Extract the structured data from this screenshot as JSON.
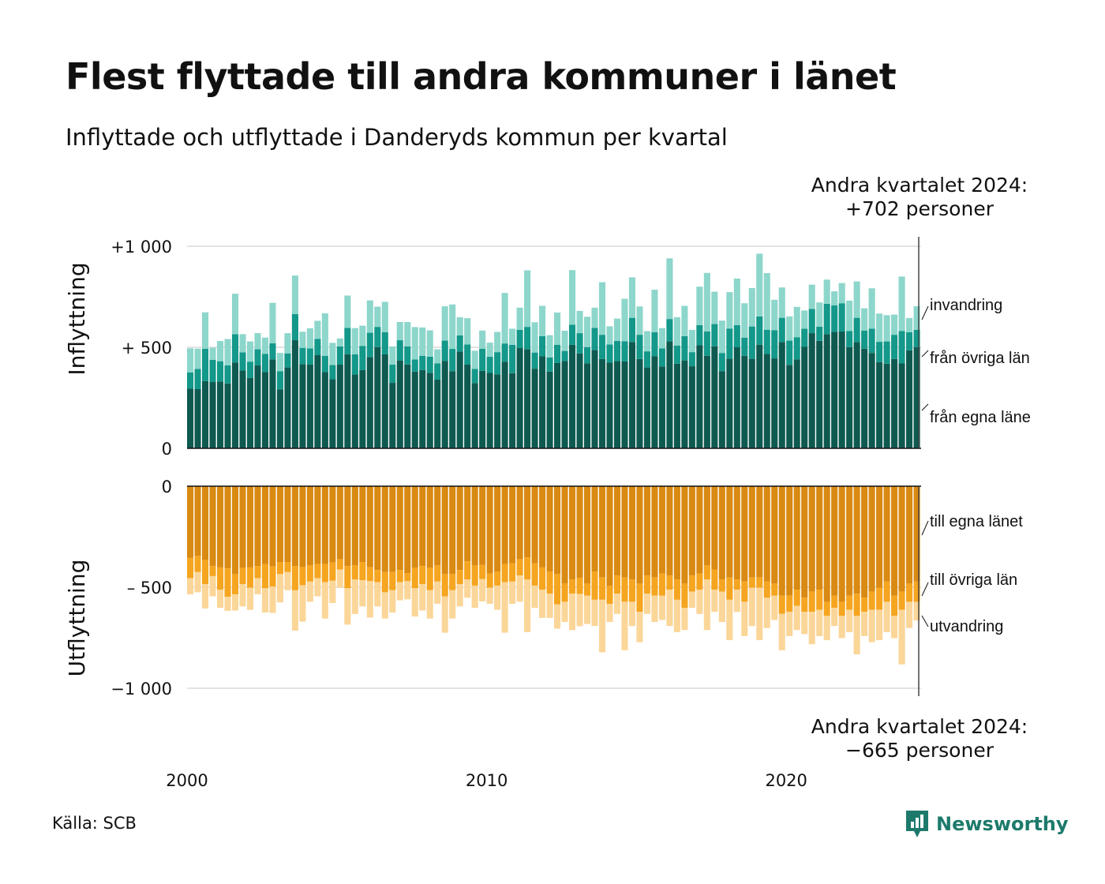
{
  "title": "Flest flyttade till andra kommuner i länet",
  "subtitle": "Inflyttade och utflyttade i Danderyds kommun per kvartal",
  "note_top": [
    "Andra kvartalet 2024:",
    "+702 personer"
  ],
  "note_bottom": [
    "Andra kvartalet 2024:",
    "−665 personer"
  ],
  "source": "Källa: SCB",
  "brand": "Newsworthy",
  "colors": {
    "in_own": "#0e5a50",
    "in_other": "#13988a",
    "in_immig": "#8dd6cb",
    "out_own": "#d98a12",
    "out_other": "#f5a51f",
    "out_emig": "#fbd699",
    "grid": "#e3e3e3",
    "brand": "#1d7a6b"
  },
  "chart_data": [
    {
      "type": "bar",
      "stacked": true,
      "title": "",
      "ylabel": "Inflyttning",
      "ylim": [
        0,
        1050
      ],
      "yticks": [
        {
          "value": 0,
          "label": "0"
        },
        {
          "value": 500,
          "label": "+  500"
        },
        {
          "value": 1000,
          "label": "+1 000"
        }
      ],
      "xticks": [
        {
          "value": 2000,
          "label": "2000"
        },
        {
          "value": 2010,
          "label": "2010"
        },
        {
          "value": 2020,
          "label": "2020"
        }
      ],
      "x_start": "2000 Q1",
      "x_end": "2024 Q2",
      "series": [
        {
          "name": "från egna länet",
          "label": "från egna läne",
          "values": [
            295,
            293,
            333,
            328,
            331,
            321,
            425,
            385,
            349,
            410,
            378,
            440,
            292,
            400,
            535,
            417,
            414,
            461,
            378,
            342,
            414,
            466,
            365,
            387,
            452,
            501,
            465,
            324,
            435,
            415,
            380,
            388,
            374,
            340,
            433,
            382,
            479,
            414,
            323,
            383,
            373,
            366,
            429,
            372,
            496,
            491,
            394,
            455,
            380,
            422,
            432,
            512,
            470,
            421,
            486,
            442,
            424,
            432,
            430,
            526,
            442,
            400,
            455,
            405,
            530,
            419,
            435,
            406,
            510,
            458,
            505,
            382,
            443,
            500,
            458,
            443,
            513,
            467,
            445,
            526,
            413,
            440,
            502,
            570,
            532,
            565,
            577,
            578,
            501,
            526,
            493,
            472,
            427,
            419,
            442,
            420,
            485,
            501
          ]
        },
        {
          "name": "från övriga län",
          "values": [
            80,
            100,
            160,
            110,
            100,
            90,
            140,
            90,
            80,
            80,
            90,
            80,
            90,
            70,
            130,
            80,
            80,
            80,
            80,
            70,
            90,
            130,
            100,
            120,
            120,
            100,
            110,
            90,
            100,
            90,
            60,
            70,
            80,
            80,
            100,
            110,
            80,
            100,
            70,
            110,
            80,
            110,
            90,
            140,
            90,
            110,
            80,
            100,
            70,
            90,
            50,
            100,
            100,
            80,
            110,
            120,
            90,
            100,
            100,
            120,
            120,
            80,
            120,
            90,
            110,
            90,
            120,
            70,
            100,
            120,
            110,
            90,
            150,
            110,
            90,
            160,
            140,
            120,
            140,
            120,
            120,
            110,
            90,
            120,
            70,
            150,
            130,
            140,
            80,
            120,
            90,
            120,
            100,
            110,
            120,
            160,
            90,
            86
          ]
        },
        {
          "name": "invandring",
          "values": [
            120,
            100,
            180,
            60,
            100,
            130,
            200,
            90,
            100,
            80,
            80,
            200,
            90,
            100,
            190,
            80,
            100,
            90,
            210,
            110,
            40,
            160,
            130,
            100,
            160,
            100,
            150,
            90,
            90,
            120,
            160,
            140,
            130,
            70,
            170,
            220,
            90,
            130,
            90,
            90,
            70,
            100,
            250,
            80,
            110,
            280,
            150,
            150,
            110,
            160,
            100,
            270,
            110,
            150,
            100,
            260,
            90,
            110,
            210,
            200,
            140,
            100,
            210,
            100,
            300,
            140,
            150,
            110,
            190,
            290,
            160,
            160,
            180,
            230,
            170,
            190,
            310,
            280,
            150,
            150,
            120,
            150,
            90,
            120,
            120,
            120,
            70,
            100,
            150,
            180,
            110,
            200,
            140,
            130,
            100,
            270,
            70,
            116
          ]
        }
      ]
    },
    {
      "type": "bar",
      "stacked": true,
      "title": "",
      "ylabel": "Utflyttning",
      "ylim": [
        -1050,
        0
      ],
      "yticks": [
        {
          "value": 0,
          "label": "0"
        },
        {
          "value": -500,
          "label": "–  500"
        },
        {
          "value": -1000,
          "label": "−1 000"
        }
      ],
      "xticks": [
        {
          "value": 2000,
          "label": "2000"
        },
        {
          "value": 2010,
          "label": "2010"
        },
        {
          "value": 2020,
          "label": "2020"
        }
      ],
      "x_start": "2000 Q1",
      "x_end": "2024 Q2",
      "series": [
        {
          "name": "till egna länet",
          "values": [
            -355,
            -345,
            -365,
            -395,
            -402,
            -407,
            -435,
            -405,
            -402,
            -395,
            -385,
            -397,
            -375,
            -375,
            -395,
            -400,
            -392,
            -385,
            -385,
            -378,
            -362,
            -395,
            -392,
            -375,
            -400,
            -415,
            -425,
            -425,
            -415,
            -430,
            -405,
            -395,
            -405,
            -392,
            -435,
            -435,
            -415,
            -372,
            -392,
            -390,
            -432,
            -422,
            -385,
            -382,
            -362,
            -352,
            -382,
            -402,
            -422,
            -435,
            -482,
            -462,
            -453,
            -482,
            -422,
            -452,
            -492,
            -442,
            -452,
            -462,
            -482,
            -442,
            -452,
            -432,
            -442,
            -462,
            -482,
            -442,
            -432,
            -392,
            -412,
            -462,
            -452,
            -462,
            -472,
            -452,
            -452,
            -472,
            -482,
            -542,
            -542,
            -512,
            -552,
            -522,
            -512,
            -572,
            -542,
            -572,
            -542,
            -532,
            -552,
            -522,
            -502,
            -472,
            -542,
            -522,
            -482,
            -472
          ]
        },
        {
          "name": "till övriga län",
          "values": [
            -100,
            -80,
            -120,
            -50,
            -110,
            -140,
            -100,
            -80,
            -100,
            -60,
            -120,
            -100,
            -60,
            -50,
            -120,
            -90,
            -80,
            -70,
            -90,
            -90,
            -50,
            -110,
            -70,
            -90,
            -70,
            -60,
            -100,
            -90,
            -60,
            -40,
            -100,
            -90,
            -110,
            -80,
            -110,
            -80,
            -70,
            -90,
            -100,
            -70,
            -70,
            -70,
            -90,
            -90,
            -80,
            -110,
            -110,
            -110,
            -110,
            -150,
            -90,
            -70,
            -80,
            -60,
            -140,
            -110,
            -90,
            -90,
            -120,
            -110,
            -140,
            -90,
            -90,
            -110,
            -70,
            -100,
            -120,
            -80,
            -80,
            -70,
            -100,
            -60,
            -110,
            -50,
            -100,
            -50,
            -50,
            -80,
            -60,
            -90,
            -80,
            -80,
            -70,
            -100,
            -100,
            -70,
            -60,
            -70,
            -70,
            -110,
            -70,
            -90,
            -110,
            -100,
            -100,
            -90,
            -90,
            -100
          ]
        },
        {
          "name": "utvandring",
          "values": [
            -80,
            -100,
            -120,
            -100,
            -90,
            -70,
            -80,
            -110,
            -110,
            -80,
            -120,
            -130,
            -140,
            -90,
            -200,
            -180,
            -100,
            -90,
            -180,
            -110,
            -90,
            -180,
            -170,
            -130,
            -180,
            -120,
            -130,
            -110,
            -90,
            -90,
            -140,
            -130,
            -140,
            -110,
            -180,
            -140,
            -110,
            -90,
            -110,
            -110,
            -80,
            -120,
            -250,
            -110,
            -130,
            -260,
            -110,
            -140,
            -120,
            -120,
            -100,
            -180,
            -160,
            -140,
            -130,
            -260,
            -90,
            -100,
            -240,
            -120,
            -150,
            -100,
            -130,
            -120,
            -180,
            -160,
            -110,
            -80,
            -120,
            -250,
            -110,
            -150,
            -200,
            -110,
            -170,
            -190,
            -260,
            -150,
            -120,
            -180,
            -120,
            -120,
            -110,
            -160,
            -130,
            -120,
            -90,
            -110,
            -110,
            -190,
            -120,
            -160,
            -150,
            -150,
            -110,
            -270,
            -130,
            -93
          ]
        }
      ]
    }
  ]
}
